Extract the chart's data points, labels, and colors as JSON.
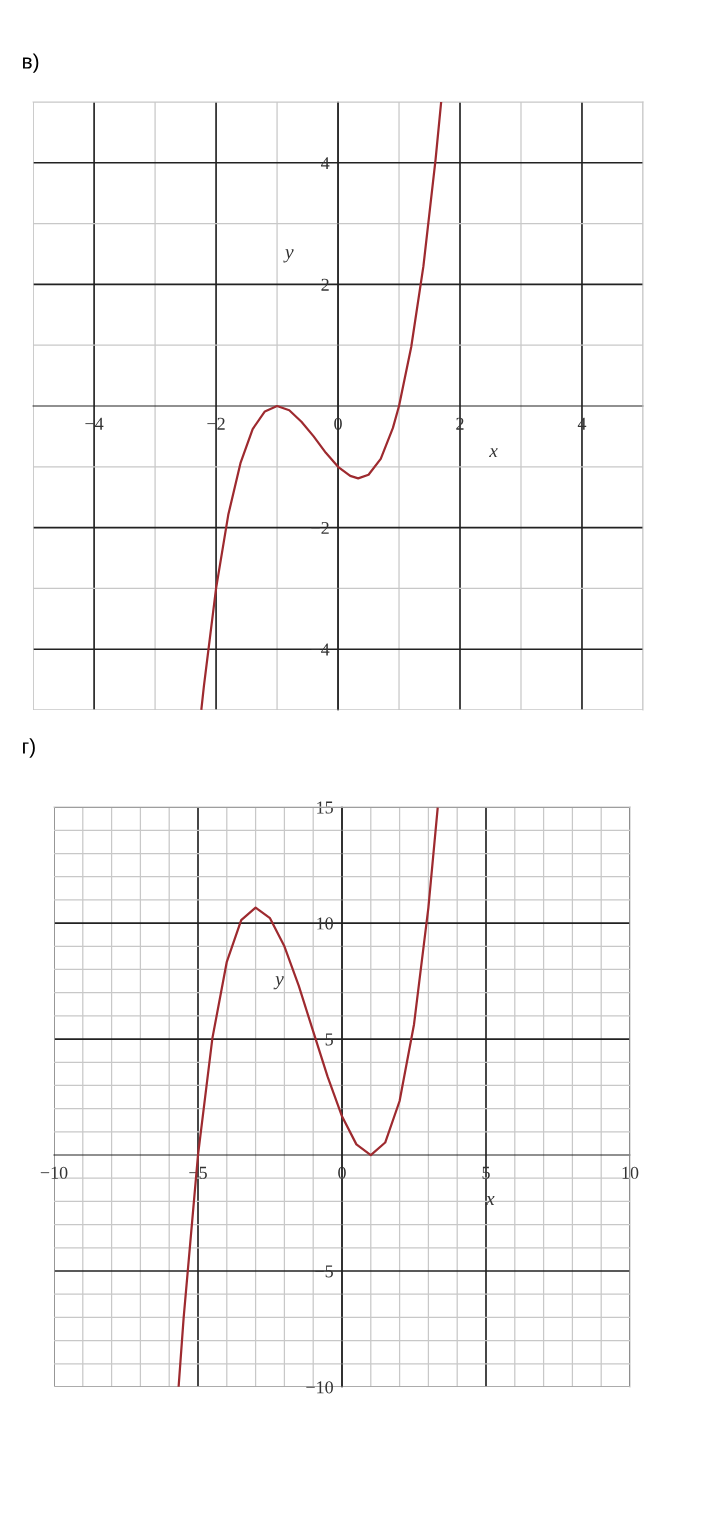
{
  "chart_data": [
    {
      "type": "line",
      "title": "в)",
      "xlabel": "x",
      "ylabel": "y",
      "grid": true,
      "marker": "none",
      "line_style": "solid",
      "xlim": [
        -5,
        5
      ],
      "ylim": [
        -5,
        5
      ],
      "xticks": [
        {
          "value": -5,
          "label": null
        },
        -4,
        {
          "value": -3,
          "label": null
        },
        -2,
        {
          "value": -1,
          "label": null
        },
        0,
        {
          "value": 1,
          "label": null
        },
        2,
        {
          "value": 3,
          "label": null
        },
        4,
        {
          "value": 5,
          "label": null
        }
      ],
      "yticks": [
        {
          "value": -5,
          "label": null
        },
        -4,
        {
          "value": -3,
          "label": null
        },
        -2,
        {
          "value": -1,
          "label": null
        },
        {
          "value": 1,
          "label": null
        },
        2,
        {
          "value": 3,
          "label": null
        },
        4,
        {
          "value": 5,
          "label": null
        }
      ],
      "x": [
        -2.24,
        -2.2,
        -2,
        -1.8,
        -1.6,
        -1.4,
        -1.2,
        -1,
        -0.8,
        -0.6,
        -0.4,
        -0.2,
        0,
        0.2,
        0.33,
        0.5,
        0.7,
        0.9,
        1,
        1.2,
        1.4,
        1.6,
        1.69
      ],
      "series": [
        {
          "color": "#9e2a2f",
          "values": [
            -4.98,
            -4.61,
            -3,
            -1.79,
            -0.94,
            -0.38,
            -0.09,
            0,
            -0.07,
            -0.26,
            -0.5,
            -0.77,
            -1,
            -1.15,
            -1.19,
            -1.13,
            -0.87,
            -0.36,
            0,
            0.97,
            2.3,
            4.06,
            4.99
          ]
        }
      ]
    },
    {
      "type": "line",
      "title": "г)",
      "xlabel": "x",
      "ylabel": "y",
      "grid": true,
      "marker": "none",
      "line_style": "solid",
      "xlim": [
        -10,
        10
      ],
      "ylim": [
        -10,
        15
      ],
      "xticks": [
        -10,
        {
          "value": -9,
          "label": null
        },
        {
          "value": -8,
          "label": null
        },
        {
          "value": -7,
          "label": null
        },
        {
          "value": -6,
          "label": null
        },
        -5,
        {
          "value": -4,
          "label": null
        },
        {
          "value": -3,
          "label": null
        },
        {
          "value": -2,
          "label": null
        },
        {
          "value": -1,
          "label": null
        },
        0,
        {
          "value": 1,
          "label": null
        },
        {
          "value": 2,
          "label": null
        },
        {
          "value": 3,
          "label": null
        },
        {
          "value": 4,
          "label": null
        },
        5,
        {
          "value": 6,
          "label": null
        },
        {
          "value": 7,
          "label": null
        },
        {
          "value": 8,
          "label": null
        },
        {
          "value": 9,
          "label": null
        },
        10
      ],
      "yticks": [
        -10,
        {
          "value": -9,
          "label": null
        },
        {
          "value": -8,
          "label": null
        },
        {
          "value": -7,
          "label": null
        },
        {
          "value": -6,
          "label": null
        },
        -5,
        {
          "value": -4,
          "label": null
        },
        {
          "value": -3,
          "label": null
        },
        {
          "value": -2,
          "label": null
        },
        {
          "value": -1,
          "label": null
        },
        {
          "value": 1,
          "label": null
        },
        {
          "value": 2,
          "label": null
        },
        {
          "value": 3,
          "label": null
        },
        {
          "value": 4,
          "label": null
        },
        5,
        {
          "value": 6,
          "label": null
        },
        {
          "value": 7,
          "label": null
        },
        {
          "value": 8,
          "label": null
        },
        {
          "value": 9,
          "label": null
        },
        10,
        {
          "value": 11,
          "label": null
        },
        {
          "value": 12,
          "label": null
        },
        {
          "value": 13,
          "label": null
        },
        {
          "value": 14,
          "label": null
        },
        15
      ],
      "x": [
        -5.67,
        -5.5,
        -5,
        -4.5,
        -4,
        -3.5,
        -3,
        -2.5,
        -2,
        -1.5,
        -1,
        -0.5,
        0,
        0.5,
        1,
        1.5,
        2,
        2.5,
        3,
        3.32
      ],
      "series": [
        {
          "color": "#9e2a2f",
          "values": [
            -9.94,
            -7.04,
            0,
            5.04,
            8.33,
            10.13,
            10.67,
            10.21,
            9,
            7.29,
            5.33,
            3.38,
            1.67,
            0.46,
            0,
            0.54,
            2.33,
            5.63,
            10.67,
            14.93
          ]
        }
      ]
    }
  ]
}
